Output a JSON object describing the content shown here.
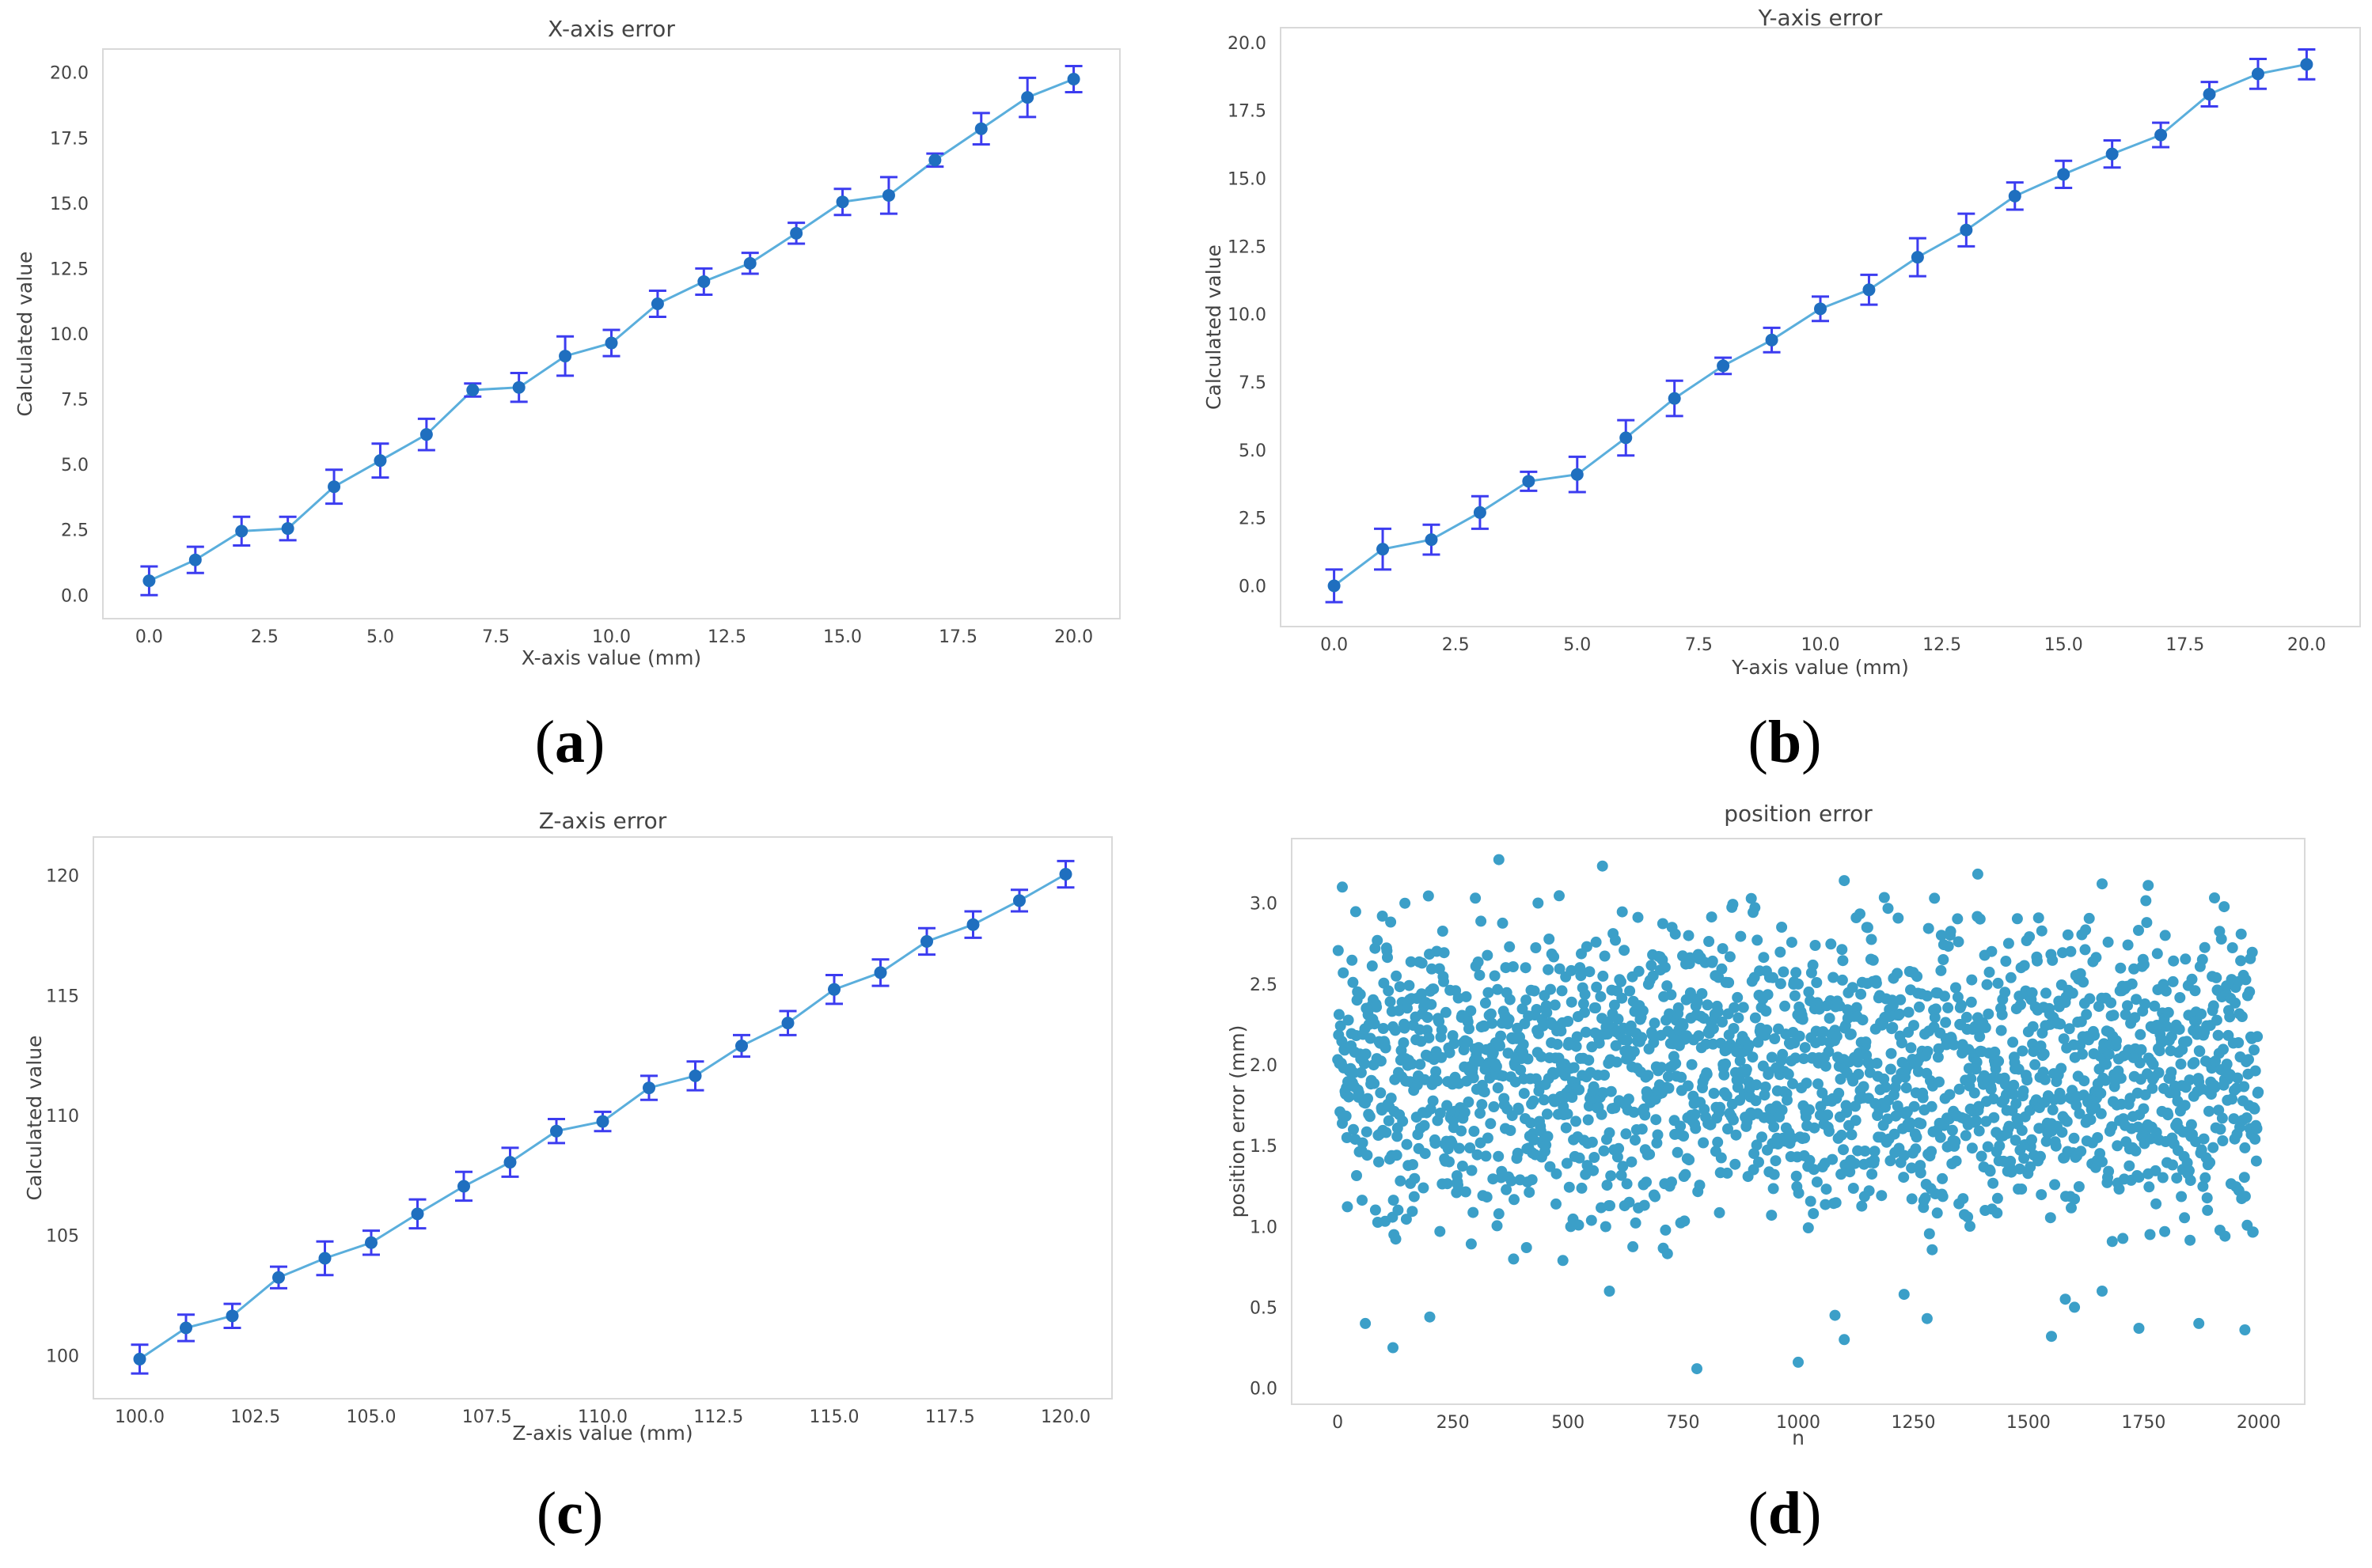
{
  "colors": {
    "line": "#5aaedc",
    "marker": "#1f6fbf",
    "errorbar": "#3c3cf0",
    "scatter": "#1a8fbf",
    "axes_border": "#d9d9d9",
    "text": "#444444"
  },
  "captions": {
    "a": {
      "open": "(",
      "letter": "a",
      "close": ")"
    },
    "b": {
      "open": "(",
      "letter": "b",
      "close": ")"
    },
    "c": {
      "open": "(",
      "letter": "c",
      "close": ")"
    },
    "d": {
      "open": "(",
      "letter": "d",
      "close": ")"
    }
  },
  "chart_data": [
    {
      "id": "a",
      "type": "line",
      "title": "X-axis error",
      "xlabel": "X-axis value (mm)",
      "ylabel": "Calculated value",
      "xlim": [
        -1,
        21
      ],
      "ylim": [
        -0.9,
        20.9
      ],
      "xticks": [
        0,
        2.5,
        5,
        7.5,
        10,
        12.5,
        15,
        17.5,
        20
      ],
      "xtick_labels": [
        "0.0",
        "2.5",
        "5.0",
        "7.5",
        "10.0",
        "12.5",
        "15.0",
        "17.5",
        "20.0"
      ],
      "yticks": [
        0,
        2.5,
        5,
        7.5,
        10,
        12.5,
        15,
        17.5,
        20
      ],
      "ytick_labels": [
        "0.0",
        "2.5",
        "5.0",
        "7.5",
        "10.0",
        "12.5",
        "15.0",
        "17.5",
        "20.0"
      ],
      "grid": false,
      "x": [
        0,
        1,
        2,
        3,
        4,
        5,
        6,
        7,
        8,
        9,
        10,
        11,
        12,
        13,
        14,
        15,
        16,
        17,
        18,
        19,
        20
      ],
      "y": [
        0.55,
        1.35,
        2.45,
        2.55,
        4.15,
        5.15,
        6.15,
        7.85,
        7.95,
        9.15,
        9.65,
        11.15,
        12.0,
        12.7,
        13.85,
        15.05,
        15.3,
        16.65,
        17.85,
        19.05,
        19.75
      ],
      "err": [
        0.55,
        0.5,
        0.55,
        0.45,
        0.65,
        0.65,
        0.6,
        0.25,
        0.55,
        0.75,
        0.5,
        0.5,
        0.5,
        0.4,
        0.4,
        0.5,
        0.7,
        0.25,
        0.6,
        0.75,
        0.5
      ]
    },
    {
      "id": "b",
      "type": "line",
      "title": "Y-axis error",
      "xlabel": "Y-axis value (mm)",
      "ylabel": "Calculated value",
      "xlim": [
        -1.1,
        21.1
      ],
      "ylim": [
        -1.5,
        20.55
      ],
      "xticks": [
        0,
        2.5,
        5,
        7.5,
        10,
        12.5,
        15,
        17.5,
        20
      ],
      "xtick_labels": [
        "0.0",
        "2.5",
        "5.0",
        "7.5",
        "10.0",
        "12.5",
        "15.0",
        "17.5",
        "20.0"
      ],
      "yticks": [
        0,
        2.5,
        5,
        7.5,
        10,
        12.5,
        15,
        17.5,
        20
      ],
      "ytick_labels": [
        "0.0",
        "2.5",
        "5.0",
        "7.5",
        "10.0",
        "12.5",
        "15.0",
        "17.5",
        "20.0"
      ],
      "grid": false,
      "x": [
        0,
        1,
        2,
        3,
        4,
        5,
        6,
        7,
        8,
        9,
        10,
        11,
        12,
        13,
        14,
        15,
        16,
        17,
        18,
        19,
        20
      ],
      "y": [
        0.0,
        1.35,
        1.7,
        2.7,
        3.85,
        4.1,
        5.45,
        6.9,
        8.1,
        9.05,
        10.2,
        10.9,
        12.1,
        13.1,
        14.35,
        15.15,
        15.9,
        16.6,
        18.1,
        18.85,
        19.2
      ],
      "err": [
        0.6,
        0.75,
        0.55,
        0.6,
        0.35,
        0.65,
        0.65,
        0.65,
        0.3,
        0.45,
        0.45,
        0.55,
        0.7,
        0.6,
        0.5,
        0.5,
        0.5,
        0.45,
        0.45,
        0.55,
        0.55
      ]
    },
    {
      "id": "c",
      "type": "line",
      "title": "Z-axis error",
      "xlabel": "Z-axis value (mm)",
      "ylabel": "Calculated value",
      "xlim": [
        99,
        121
      ],
      "ylim": [
        98.2,
        121.6
      ],
      "xticks": [
        100,
        102.5,
        105,
        107.5,
        110,
        112.5,
        115,
        117.5,
        120
      ],
      "xtick_labels": [
        "100.0",
        "102.5",
        "105.0",
        "107.5",
        "110.0",
        "112.5",
        "115.0",
        "117.5",
        "120.0"
      ],
      "yticks": [
        100,
        105,
        110,
        115,
        120
      ],
      "ytick_labels": [
        "100",
        "105",
        "110",
        "115",
        "120"
      ],
      "grid": false,
      "x": [
        100,
        101,
        102,
        103,
        104,
        105,
        106,
        107,
        108,
        109,
        110,
        111,
        112,
        113,
        114,
        115,
        116,
        117,
        118,
        119,
        120
      ],
      "y": [
        99.85,
        101.15,
        101.65,
        103.25,
        104.05,
        104.7,
        105.9,
        107.05,
        108.05,
        109.35,
        109.75,
        111.15,
        111.65,
        112.9,
        113.85,
        115.25,
        115.95,
        117.25,
        117.95,
        118.95,
        120.05
      ],
      "err": [
        0.6,
        0.55,
        0.5,
        0.45,
        0.7,
        0.5,
        0.6,
        0.6,
        0.6,
        0.5,
        0.4,
        0.5,
        0.6,
        0.45,
        0.5,
        0.6,
        0.55,
        0.55,
        0.55,
        0.45,
        0.55
      ]
    },
    {
      "id": "d",
      "type": "scatter",
      "title": "position error",
      "xlabel": "n",
      "ylabel": "position error (mm)",
      "xlim": [
        -100,
        2100
      ],
      "ylim": [
        -0.1,
        3.4
      ],
      "xticks": [
        0,
        250,
        500,
        750,
        1000,
        1250,
        1500,
        1750,
        2000
      ],
      "xtick_labels": [
        "0",
        "250",
        "500",
        "750",
        "1000",
        "1250",
        "1500",
        "1750",
        "2000"
      ],
      "yticks": [
        0,
        0.5,
        1,
        1.5,
        2,
        2.5,
        3
      ],
      "ytick_labels": [
        "0.0",
        "0.5",
        "1.0",
        "1.5",
        "2.0",
        "2.5",
        "3.0"
      ],
      "grid": false,
      "n_points": 2000,
      "sample_every": 1,
      "points": [
        [
          10,
          3.1
        ],
        [
          350,
          3.27
        ],
        [
          575,
          3.23
        ],
        [
          1390,
          3.18
        ],
        [
          1100,
          3.14
        ],
        [
          1660,
          3.12
        ],
        [
          1760,
          3.11
        ],
        [
          780,
          0.12
        ],
        [
          1000,
          0.16
        ],
        [
          120,
          0.25
        ],
        [
          1550,
          0.32
        ],
        [
          1970,
          0.36
        ],
        [
          1100,
          0.3
        ],
        [
          1740,
          0.37
        ],
        [
          60,
          0.4
        ],
        [
          1870,
          0.4
        ],
        [
          1080,
          0.45
        ],
        [
          1280,
          0.43
        ],
        [
          200,
          0.44
        ],
        [
          1600,
          0.5
        ],
        [
          590,
          0.6
        ],
        [
          1230,
          0.58
        ],
        [
          1580,
          0.55
        ],
        [
          1660,
          0.6
        ]
      ],
      "bulk": {
        "y_center": 1.95,
        "y_spread": 0.85,
        "note": "about 2000 points spread over n 0–2000, mostly between 0.6 and 3.0 mm"
      }
    }
  ]
}
